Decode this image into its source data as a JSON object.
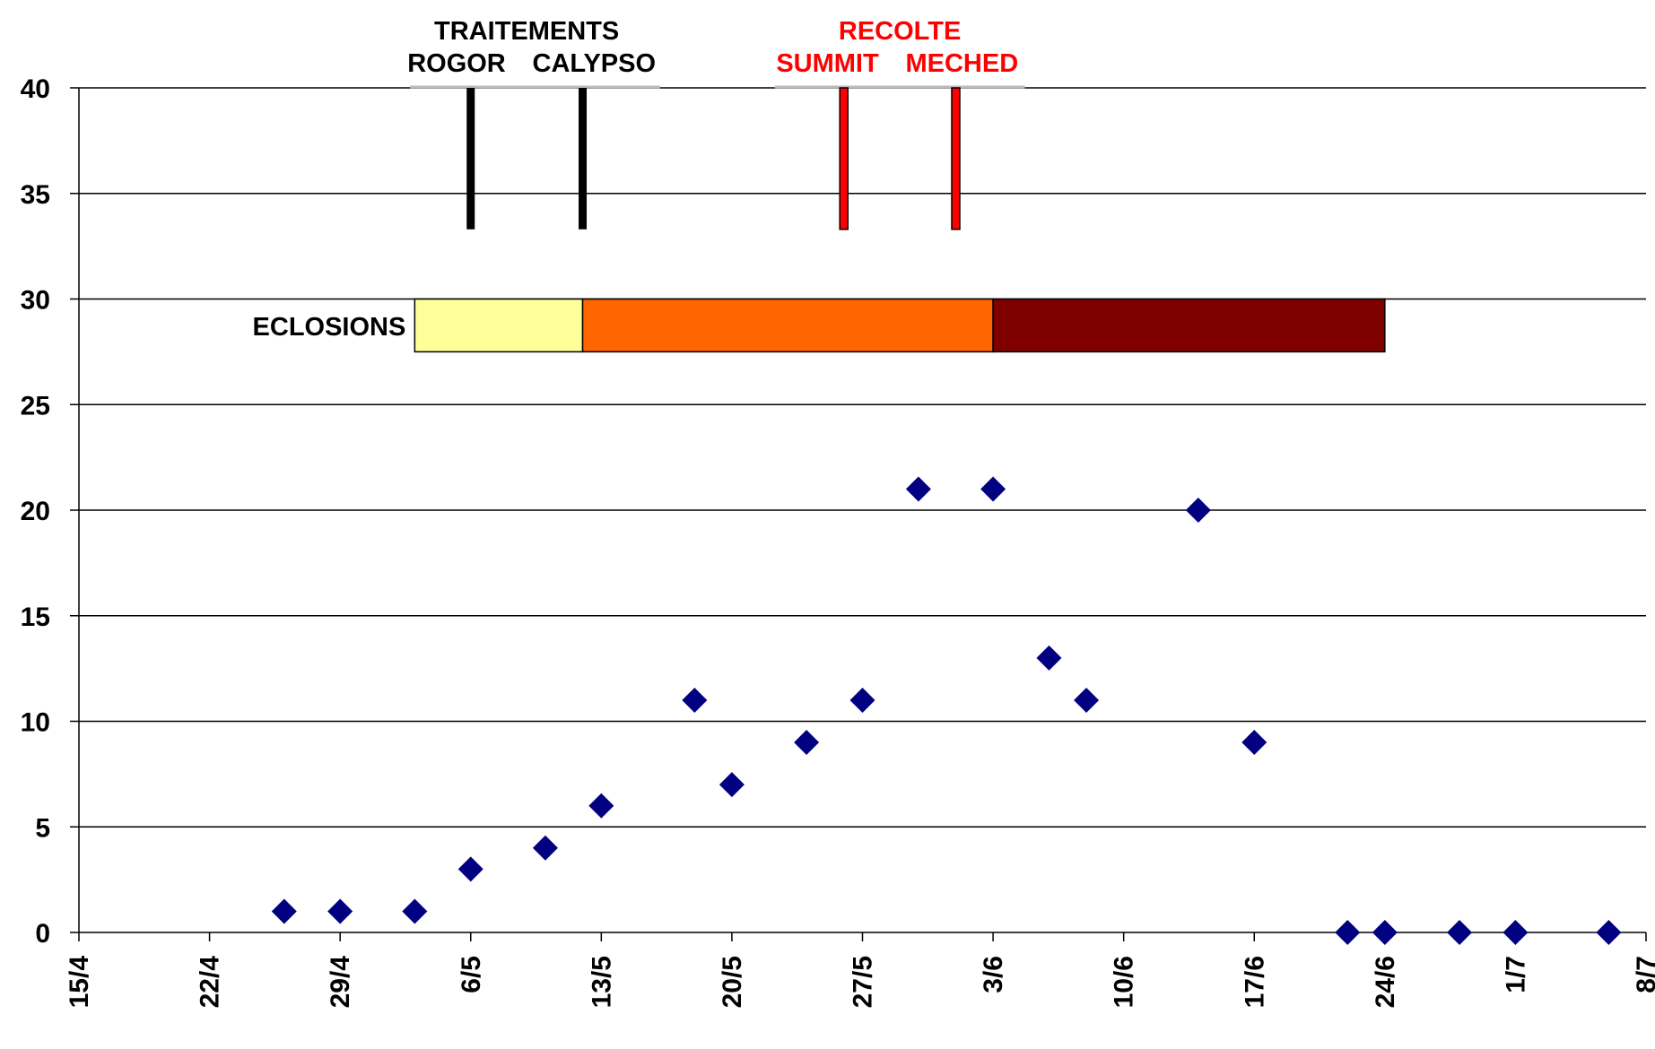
{
  "chart_data": {
    "type": "scatter",
    "title": "",
    "xlabel": "",
    "ylabel": "",
    "ylim": [
      0,
      40
    ],
    "yticks": [
      0,
      5,
      10,
      15,
      20,
      25,
      30,
      35,
      40
    ],
    "ytick_labels": [
      "0",
      "5",
      "10",
      "15",
      "20",
      "25",
      "30",
      "35",
      "40"
    ],
    "xlim": [
      "2004-04-15",
      "2004-07-08"
    ],
    "xtick_labels": [
      "15/4",
      "22/4",
      "29/4",
      "6/5",
      "13/5",
      "20/5",
      "27/5",
      "3/6",
      "10/6",
      "17/6",
      "24/6",
      "1/7",
      "8/7"
    ],
    "xtick_dates": [
      "2004-04-15",
      "2004-04-22",
      "2004-04-29",
      "2004-05-06",
      "2004-05-13",
      "2004-05-20",
      "2004-05-27",
      "2004-06-03",
      "2004-06-10",
      "2004-06-17",
      "2004-06-24",
      "2004-07-01",
      "2004-07-08"
    ],
    "grid": true,
    "marker_color": "#000080",
    "series": [
      {
        "points": [
          {
            "x": "2004-04-26",
            "y": 1
          },
          {
            "x": "2004-04-29",
            "y": 1
          },
          {
            "x": "2004-05-03",
            "y": 1
          },
          {
            "x": "2004-05-06",
            "y": 3
          },
          {
            "x": "2004-05-10",
            "y": 4
          },
          {
            "x": "2004-05-13",
            "y": 6
          },
          {
            "x": "2004-05-18",
            "y": 11
          },
          {
            "x": "2004-05-20",
            "y": 7
          },
          {
            "x": "2004-05-24",
            "y": 9
          },
          {
            "x": "2004-05-27",
            "y": 11
          },
          {
            "x": "2004-05-30",
            "y": 21
          },
          {
            "x": "2004-06-03",
            "y": 21
          },
          {
            "x": "2004-06-06",
            "y": 13
          },
          {
            "x": "2004-06-08",
            "y": 11
          },
          {
            "x": "2004-06-14",
            "y": 20
          },
          {
            "x": "2004-06-17",
            "y": 9
          },
          {
            "x": "2004-06-22",
            "y": 0
          },
          {
            "x": "2004-06-24",
            "y": 0
          },
          {
            "x": "2004-06-28",
            "y": 0
          },
          {
            "x": "2004-07-01",
            "y": 0
          },
          {
            "x": "2004-07-06",
            "y": 0
          }
        ]
      }
    ],
    "annotations": {
      "treatments": {
        "label": "TRAITEMENTS",
        "color": "#000000",
        "events": [
          {
            "label": "ROGOR",
            "date": "2004-05-06"
          },
          {
            "label": "CALYPSO",
            "date": "2004-05-12"
          }
        ]
      },
      "harvest": {
        "label": "RECOLTE",
        "color": "#ff0000",
        "events": [
          {
            "label": "SUMMIT",
            "date": "2004-05-26"
          },
          {
            "label": "MECHED",
            "date": "2004-06-01"
          }
        ]
      },
      "hatching": {
        "label": "ECLOSIONS",
        "segments": [
          {
            "start": "2004-05-03",
            "end": "2004-05-12",
            "color": "#ffff99"
          },
          {
            "start": "2004-05-12",
            "end": "2004-06-03",
            "color": "#ff6600"
          },
          {
            "start": "2004-06-03",
            "end": "2004-06-24",
            "color": "#800000"
          }
        ]
      }
    }
  }
}
